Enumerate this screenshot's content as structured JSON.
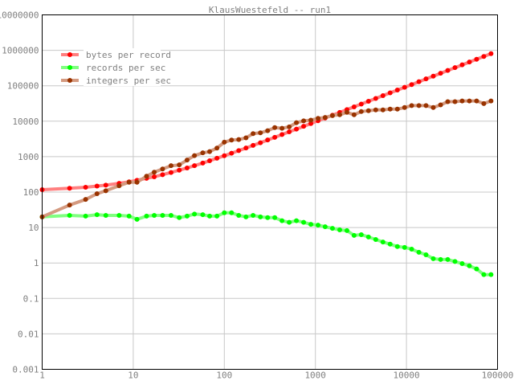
{
  "chart_data": {
    "type": "line",
    "title": "KlausWuestefeld -- run1",
    "xscale": "log",
    "yscale": "log",
    "xlim": [
      1,
      100000
    ],
    "ylim": [
      0.001,
      10000000
    ],
    "x_ticks": [
      "1",
      "10",
      "100",
      "1000",
      "10000",
      "100000"
    ],
    "y_ticks": [
      "0.001",
      "0.01",
      "0.1",
      "1",
      "10",
      "100",
      "1000",
      "10000",
      "100000",
      "1000000",
      "10000000"
    ],
    "grid": true,
    "legend_position": "top-left",
    "x": [
      1,
      2,
      3,
      4,
      5,
      7,
      9,
      11,
      14,
      17,
      21,
      26,
      32,
      39,
      47,
      58,
      69,
      83,
      100,
      120,
      144,
      173,
      207,
      249,
      299,
      358,
      430,
      516,
      619,
      743,
      892,
      1070,
      1280,
      1540,
      1850,
      2220,
      2660,
      3190,
      3830,
      4600,
      5520,
      6620,
      7950,
      9540,
      11400,
      13700,
      16400,
      19700,
      23700,
      28400,
      34100,
      40900,
      49100,
      58900,
      70700,
      84800
    ],
    "series": [
      {
        "name": "bytes per record",
        "line_color": "#ff8080",
        "dot_color": "#ff0000",
        "values": [
          117,
          128,
          137,
          148,
          157,
          177,
          195,
          215,
          245,
          270,
          310,
          357,
          415,
          480,
          555,
          660,
          765,
          900,
          1060,
          1250,
          1480,
          1750,
          2080,
          2470,
          2950,
          3510,
          4200,
          5010,
          5990,
          7170,
          8580,
          10300,
          12300,
          14700,
          17700,
          21200,
          25400,
          30400,
          36500,
          43800,
          52500,
          63000,
          75600,
          90700,
          108000,
          130000,
          156000,
          187000,
          225000,
          270000,
          324000,
          389000,
          467000,
          560000,
          672000,
          806000
        ]
      },
      {
        "name": "records per sec",
        "line_color": "#80ff80",
        "dot_color": "#00ff00",
        "values": [
          20,
          22,
          21,
          23,
          22,
          22,
          21,
          17,
          21,
          22,
          22,
          22,
          19,
          21,
          24,
          23,
          21,
          21,
          26,
          26,
          22,
          20,
          22,
          20,
          19,
          19,
          15.6,
          14,
          15.6,
          14,
          12.3,
          11.7,
          10.5,
          9.5,
          8.6,
          8.2,
          6.0,
          6.3,
          5.4,
          4.6,
          3.9,
          3.4,
          2.9,
          2.75,
          2.45,
          2.0,
          1.7,
          1.32,
          1.25,
          1.25,
          1.1,
          0.96,
          0.83,
          0.68,
          0.47,
          0.47
        ]
      },
      {
        "name": "integers per sec",
        "line_color": "#d49a80",
        "dot_color": "#993300",
        "values": [
          20,
          43,
          62,
          90,
          109,
          151,
          190,
          190,
          280,
          365,
          450,
          555,
          585,
          800,
          1070,
          1280,
          1390,
          1740,
          2560,
          2940,
          3030,
          3400,
          4450,
          4700,
          5400,
          6600,
          6300,
          6900,
          9100,
          10200,
          10700,
          12000,
          12800,
          14400,
          15200,
          17800,
          15200,
          18700,
          19800,
          20800,
          20800,
          21900,
          21900,
          24300,
          27500,
          27500,
          27500,
          24300,
          28800,
          35600,
          35600,
          37300,
          37300,
          37300,
          31500,
          37300
        ]
      }
    ]
  }
}
